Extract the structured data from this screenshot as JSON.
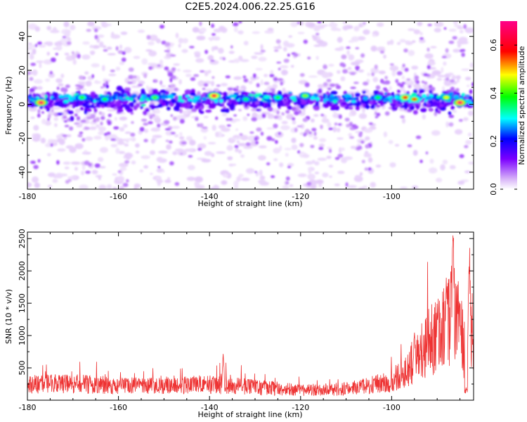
{
  "chart_data": [
    {
      "type": "heatmap",
      "title": "C2E5.2024.006.22.25.G16",
      "xlabel": "Height of straight line (km)",
      "ylabel": "Frequency (Hz)",
      "xlim": [
        -180,
        -82
      ],
      "ylim": [
        -50,
        49
      ],
      "xticks": [
        -180,
        -160,
        -140,
        -120,
        -100
      ],
      "yticks": [
        -40,
        -20,
        0,
        20,
        40
      ],
      "band_center_hz": 2,
      "colorbar": {
        "label": "Normalized spectral amplitude",
        "range": [
          0,
          0.7
        ],
        "ticks": [
          0.0,
          0.2,
          0.4,
          0.6
        ],
        "colormap": [
          "#ffffff",
          "#d8b4f8",
          "#7b00ff",
          "#0000ff",
          "#00ffff",
          "#00ff00",
          "#ffff00",
          "#ff0000",
          "#ff0088"
        ]
      },
      "hotspots": [
        {
          "x": -177,
          "y": 1,
          "amp": 0.68
        },
        {
          "x": -168,
          "y": 4,
          "amp": 0.45
        },
        {
          "x": -163,
          "y": 3,
          "amp": 0.42
        },
        {
          "x": -152,
          "y": 4,
          "amp": 0.46
        },
        {
          "x": -139,
          "y": 5,
          "amp": 0.66
        },
        {
          "x": -132,
          "y": 3,
          "amp": 0.4
        },
        {
          "x": -125,
          "y": 4,
          "amp": 0.44
        },
        {
          "x": -119,
          "y": 5,
          "amp": 0.48
        },
        {
          "x": -103,
          "y": 4,
          "amp": 0.42
        },
        {
          "x": -97,
          "y": 4,
          "amp": 0.62
        },
        {
          "x": -95,
          "y": 3,
          "amp": 0.58
        },
        {
          "x": -88,
          "y": 4,
          "amp": 0.52
        },
        {
          "x": -85,
          "y": 1,
          "amp": 0.68
        }
      ]
    },
    {
      "type": "line",
      "xlabel": "Height of straight line (km)",
      "ylabel": "SNR (10 * v/v)",
      "xlim": [
        -180,
        -82
      ],
      "ylim": [
        0,
        2600
      ],
      "xticks": [
        -180,
        -160,
        -140,
        -120,
        -100
      ],
      "yticks": [
        500,
        1000,
        1500,
        2000,
        2500
      ],
      "line_color": "#ee3333",
      "envelope": {
        "x": [
          -180,
          -170,
          -160,
          -150,
          -140,
          -130,
          -120,
          -110,
          -104,
          -100,
          -97,
          -94,
          -91,
          -88,
          -86,
          -84,
          -82
        ],
        "y": [
          280,
          290,
          260,
          250,
          280,
          230,
          180,
          200,
          270,
          350,
          520,
          800,
          1100,
          1300,
          1600,
          900,
          1300
        ]
      },
      "peaks": [
        {
          "x": -137,
          "y": 720
        },
        {
          "x": -95,
          "y": 1050
        },
        {
          "x": -90,
          "y": 1350
        },
        {
          "x": -88,
          "y": 1900
        },
        {
          "x": -86.5,
          "y": 2600
        },
        {
          "x": -85,
          "y": 1500
        },
        {
          "x": -83,
          "y": 2100
        }
      ]
    }
  ]
}
